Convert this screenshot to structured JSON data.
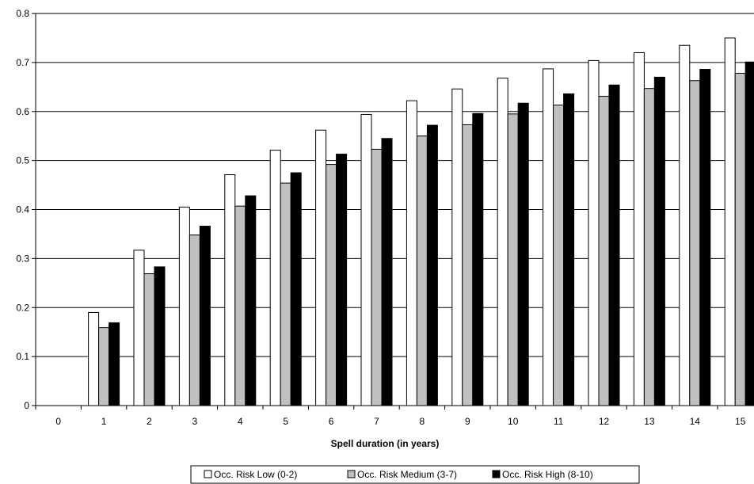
{
  "chart_data": {
    "type": "bar",
    "title": "",
    "xlabel": "Spell duration (in years)",
    "ylabel": "",
    "ylim": [
      0,
      0.8
    ],
    "yticks": [
      "0",
      "0.1",
      "0.2",
      "0.3",
      "0.4",
      "0.5",
      "0.6",
      "0.7",
      "0.8"
    ],
    "grid": true,
    "legend_position": "bottom",
    "categories": [
      "0",
      "1",
      "2",
      "3",
      "4",
      "5",
      "6",
      "7",
      "8",
      "9",
      "10",
      "11",
      "12",
      "13",
      "14",
      "15"
    ],
    "series": [
      {
        "name": "Occ. Risk Low (0-2)",
        "color": "#ffffff",
        "values": [
          0,
          0.19,
          0.317,
          0.405,
          0.471,
          0.521,
          0.562,
          0.594,
          0.622,
          0.646,
          0.668,
          0.687,
          0.704,
          0.72,
          0.735,
          0.75
        ]
      },
      {
        "name": "Occ. Risk Medium (3-7)",
        "color": "#c0c0c0",
        "values": [
          0,
          0.159,
          0.269,
          0.348,
          0.407,
          0.454,
          0.492,
          0.523,
          0.55,
          0.573,
          0.595,
          0.613,
          0.631,
          0.647,
          0.663,
          0.678
        ]
      },
      {
        "name": "Occ. Risk High (8-10)",
        "color": "#000000",
        "values": [
          0,
          0.169,
          0.283,
          0.366,
          0.428,
          0.475,
          0.513,
          0.545,
          0.572,
          0.596,
          0.617,
          0.636,
          0.654,
          0.67,
          0.686,
          0.701
        ]
      }
    ]
  }
}
